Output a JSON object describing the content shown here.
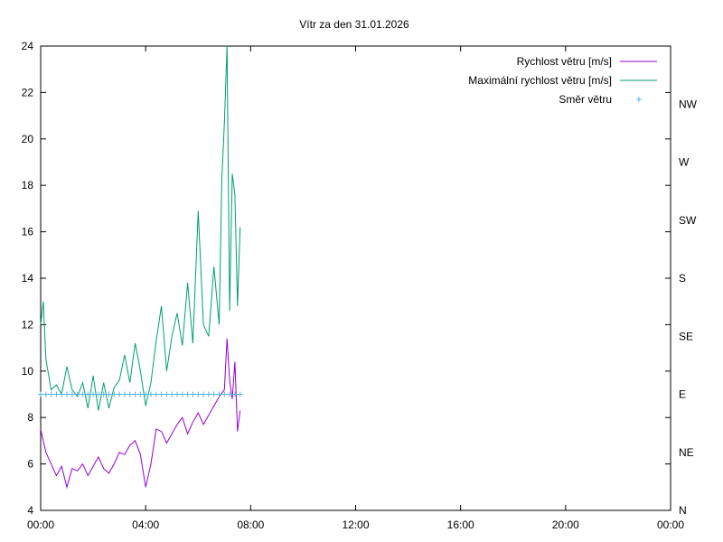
{
  "chart_data": {
    "type": "line",
    "title": "Vítr za den 31.01.2026",
    "xlabel": "",
    "ylabel": "",
    "xlim": [
      0,
      24
    ],
    "ylim": [
      4,
      24
    ],
    "x_ticks": [
      "00:00",
      "04:00",
      "08:00",
      "12:00",
      "16:00",
      "20:00",
      "00:00"
    ],
    "y_ticks": [
      4,
      6,
      8,
      10,
      12,
      14,
      16,
      18,
      20,
      22,
      24
    ],
    "y2_ticks": [
      "N",
      "NE",
      "E",
      "SE",
      "S",
      "SW",
      "W",
      "NW"
    ],
    "legend_position": "top-right",
    "grid": false,
    "series": [
      {
        "name": "Rychlost větru [m/s]",
        "color": "#9400d3",
        "style": "line",
        "x": [
          0.0,
          0.2,
          0.4,
          0.6,
          0.8,
          1.0,
          1.2,
          1.4,
          1.6,
          1.8,
          2.0,
          2.2,
          2.4,
          2.6,
          2.8,
          3.0,
          3.2,
          3.4,
          3.6,
          3.8,
          4.0,
          4.2,
          4.4,
          4.6,
          4.8,
          5.0,
          5.2,
          5.4,
          5.6,
          5.8,
          6.0,
          6.2,
          6.4,
          6.6,
          6.8,
          7.0,
          7.1,
          7.2,
          7.3,
          7.4,
          7.5,
          7.6
        ],
        "y": [
          7.5,
          6.5,
          6.0,
          5.5,
          5.9,
          5.0,
          5.8,
          5.7,
          6.0,
          5.5,
          5.9,
          6.3,
          5.8,
          5.6,
          6.0,
          6.5,
          6.4,
          6.8,
          7.0,
          6.4,
          5.0,
          6.0,
          7.5,
          7.4,
          6.9,
          7.3,
          7.7,
          8.0,
          7.3,
          7.8,
          8.2,
          7.7,
          8.1,
          8.5,
          8.9,
          9.2,
          11.4,
          9.6,
          8.8,
          10.4,
          7.4,
          8.3
        ]
      },
      {
        "name": "Maximální rychlost větru [m/s]",
        "color": "#009e73",
        "style": "line",
        "x": [
          0.0,
          0.1,
          0.2,
          0.4,
          0.6,
          0.8,
          1.0,
          1.2,
          1.4,
          1.6,
          1.8,
          2.0,
          2.2,
          2.4,
          2.6,
          2.8,
          3.0,
          3.2,
          3.4,
          3.6,
          3.8,
          4.0,
          4.2,
          4.4,
          4.6,
          4.8,
          5.0,
          5.2,
          5.4,
          5.6,
          5.8,
          6.0,
          6.2,
          6.4,
          6.6,
          6.8,
          6.9,
          7.0,
          7.1,
          7.2,
          7.3,
          7.4,
          7.5,
          7.6
        ],
        "y": [
          12.0,
          13.0,
          10.5,
          9.2,
          9.4,
          9.0,
          10.2,
          9.2,
          8.9,
          9.5,
          8.4,
          9.8,
          8.3,
          9.5,
          8.4,
          9.3,
          9.6,
          10.7,
          9.5,
          11.2,
          10.0,
          8.5,
          9.5,
          11.3,
          12.8,
          10.0,
          11.5,
          12.5,
          11.1,
          13.8,
          11.2,
          16.9,
          12.0,
          11.5,
          14.5,
          12.0,
          18.2,
          20.7,
          24.0,
          12.6,
          18.5,
          17.6,
          12.8,
          16.2
        ]
      },
      {
        "name": "Směr větru",
        "color": "#56b4e9",
        "style": "points",
        "axis": "y2",
        "marker": "+",
        "x": [
          0.0,
          0.2,
          0.4,
          0.6,
          0.8,
          1.0,
          1.2,
          1.4,
          1.6,
          1.8,
          2.0,
          2.2,
          2.4,
          2.6,
          2.8,
          3.0,
          3.2,
          3.4,
          3.6,
          3.8,
          4.0,
          4.2,
          4.4,
          4.6,
          4.8,
          5.0,
          5.2,
          5.4,
          5.6,
          5.8,
          6.0,
          6.2,
          6.4,
          6.6,
          6.8,
          7.0,
          7.2,
          7.4,
          7.6
        ],
        "y": [
          "E",
          "E",
          "E",
          "E",
          "E",
          "E",
          "E",
          "E",
          "E",
          "E",
          "E",
          "E",
          "E",
          "E",
          "E",
          "E",
          "E",
          "E",
          "E",
          "E",
          "E",
          "E",
          "E",
          "E",
          "E",
          "E",
          "E",
          "E",
          "E",
          "E",
          "E",
          "E",
          "E",
          "E",
          "E",
          "E",
          "E",
          "E",
          "E"
        ]
      }
    ]
  }
}
